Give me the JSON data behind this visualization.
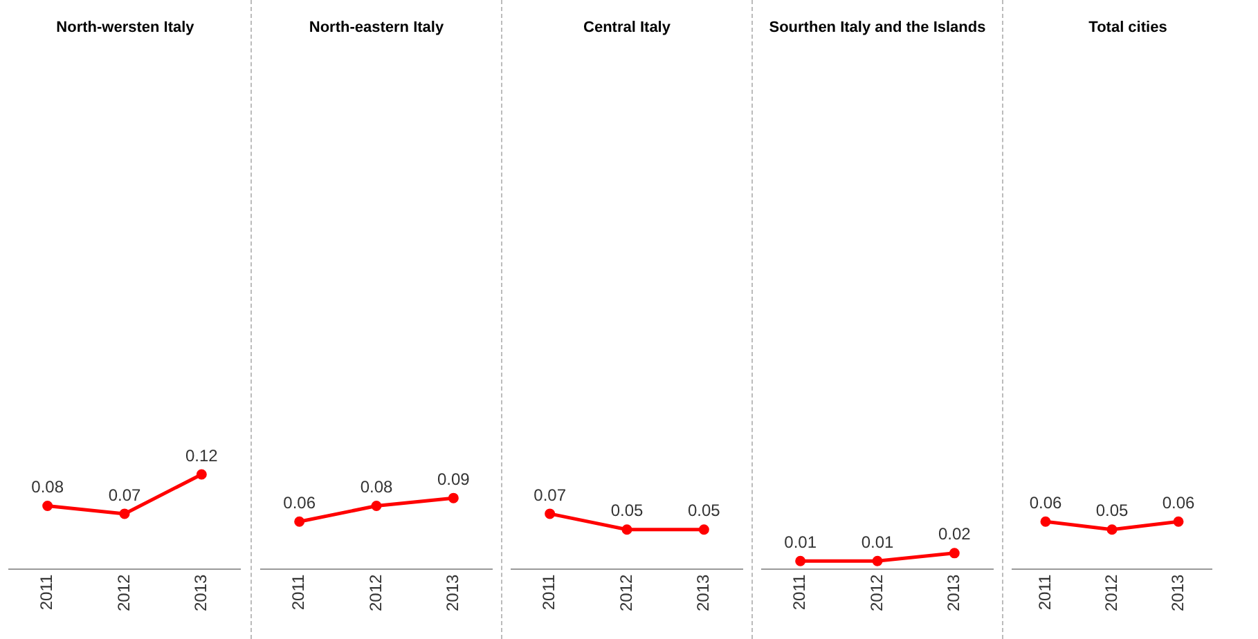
{
  "chart_data": [
    {
      "type": "line",
      "title": "North-wersten Italy",
      "categories": [
        "2011",
        "2012",
        "2013"
      ],
      "series": [
        {
          "color": "#ff0000",
          "values": [
            0.08,
            0.07,
            0.12
          ]
        }
      ],
      "tick_labels": "x",
      "data_labels": true,
      "grid": false,
      "legend": false,
      "marker": "circle"
    },
    {
      "type": "line",
      "title": "North-eastern Italy",
      "categories": [
        "2011",
        "2012",
        "2013"
      ],
      "series": [
        {
          "color": "#ff0000",
          "values": [
            0.06,
            0.08,
            0.09
          ]
        }
      ],
      "tick_labels": "x",
      "data_labels": true,
      "grid": false,
      "legend": false,
      "marker": "circle"
    },
    {
      "type": "line",
      "title": "Central Italy",
      "categories": [
        "2011",
        "2012",
        "2013"
      ],
      "series": [
        {
          "color": "#ff0000",
          "values": [
            0.07,
            0.05,
            0.05
          ]
        }
      ],
      "tick_labels": "x",
      "data_labels": true,
      "grid": false,
      "legend": false,
      "marker": "circle"
    },
    {
      "type": "line",
      "title": "Sourthen Italy and the Islands",
      "categories": [
        "2011",
        "2012",
        "2013"
      ],
      "series": [
        {
          "color": "#ff0000",
          "values": [
            0.01,
            0.01,
            0.02
          ]
        }
      ],
      "tick_labels": "x",
      "data_labels": true,
      "grid": false,
      "legend": false,
      "marker": "circle"
    },
    {
      "type": "line",
      "title": "Total cities",
      "categories": [
        "2011",
        "2012",
        "2013"
      ],
      "series": [
        {
          "color": "#ff0000",
          "values": [
            0.06,
            0.05,
            0.06
          ]
        }
      ],
      "tick_labels": "x",
      "data_labels": true,
      "grid": false,
      "legend": false,
      "marker": "circle"
    }
  ]
}
